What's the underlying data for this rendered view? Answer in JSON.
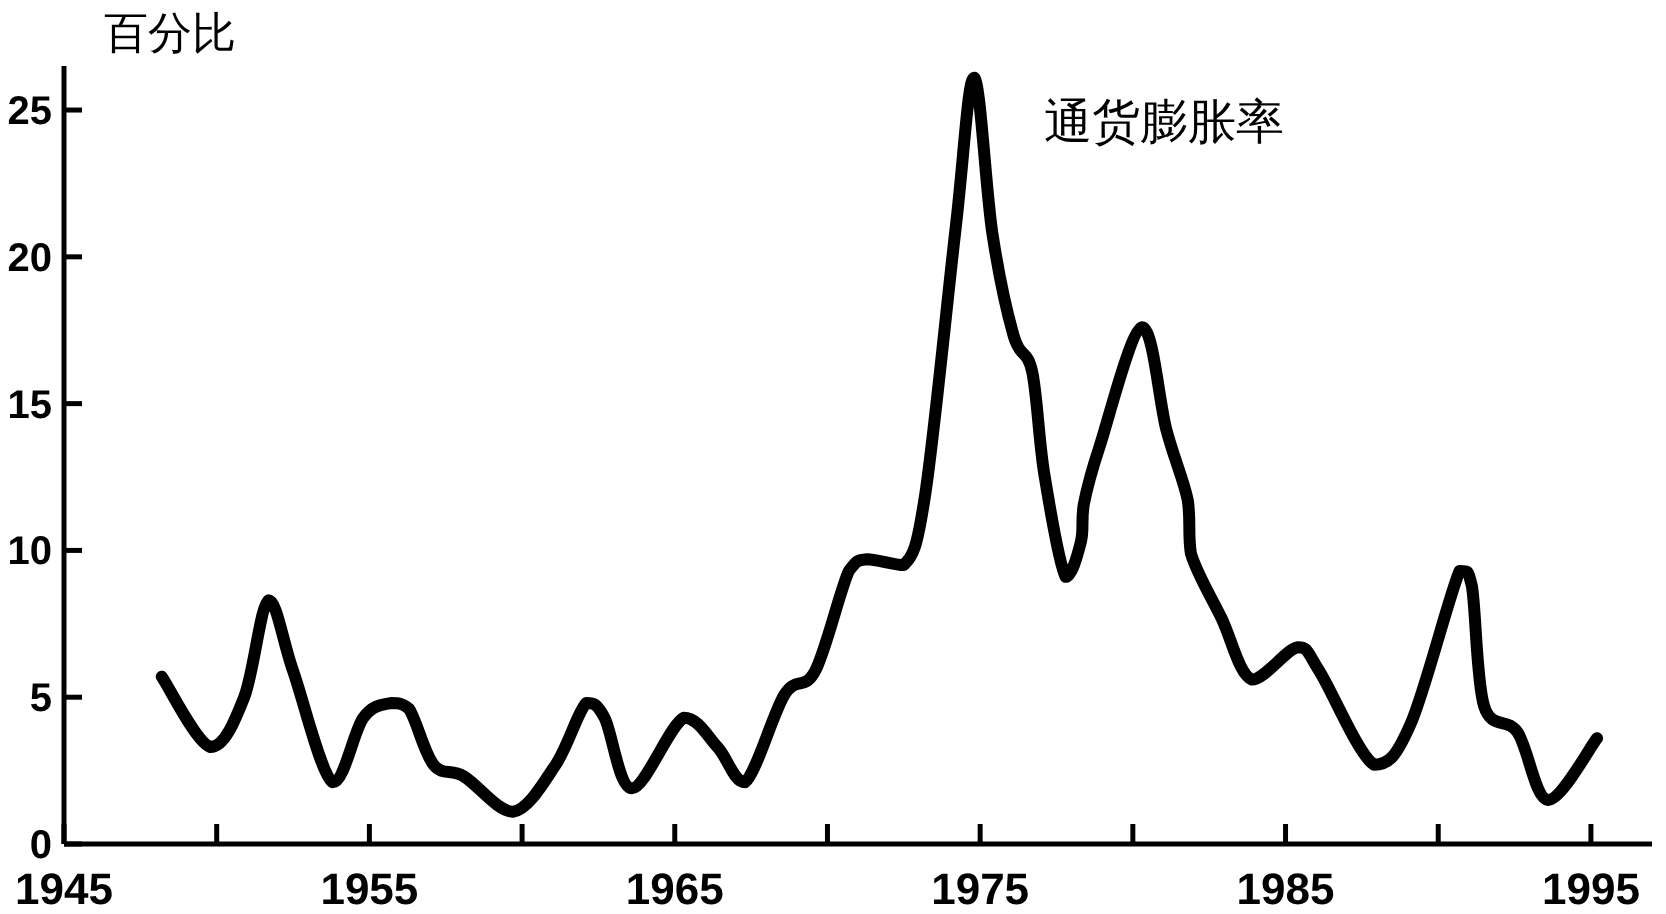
{
  "chart_data": {
    "type": "line",
    "ylabel": "百分比",
    "xlim": [
      1945,
      1997
    ],
    "ylim": [
      0,
      26.5
    ],
    "xticks": [
      1945,
      1955,
      1965,
      1975,
      1985,
      1995,
      {
        "value": 1950,
        "label": null
      },
      {
        "value": 1960,
        "label": null
      },
      {
        "value": 1970,
        "label": null
      },
      {
        "value": 1980,
        "label": null
      },
      {
        "value": 1990,
        "label": null
      }
    ],
    "yticks": [
      0,
      5,
      10,
      15,
      20,
      25
    ],
    "line_style": "solid",
    "x": [
      1948.2,
      1949.8,
      1950.9,
      1951.7,
      1952.5,
      1953.8,
      1954.8,
      1955.7,
      1956.3,
      1957.1,
      1958.1,
      1959.7,
      1961.1,
      1962.1,
      1962.7,
      1963.6,
      1965.3,
      1966.4,
      1967.3,
      1968.6,
      1969.6,
      1970.7,
      1971.3,
      1972.5,
      1973.2,
      1974.2,
      1974.8,
      1975.4,
      1976.1,
      1976.7,
      1977.1,
      1977.8,
      1978.3,
      1978.4,
      1978.9,
      1980.3,
      1981.1,
      1981.8,
      1981.9,
      1982.9,
      1983.9,
      1985.4,
      1986.1,
      1987.9,
      1989.1,
      1990.7,
      1991.1,
      1991.5,
      1992.6,
      1993.6,
      1995.2
    ],
    "series": [
      {
        "name": "通货膨胀率",
        "color": "#000000",
        "values": [
          5.7,
          3.3,
          5.0,
          8.3,
          5.9,
          2.1,
          4.3,
          4.8,
          4.6,
          2.7,
          2.3,
          1.1,
          2.7,
          4.8,
          4.3,
          1.9,
          4.3,
          3.3,
          2.1,
          5.1,
          5.9,
          9.3,
          9.7,
          9.5,
          11.9,
          21.0,
          26.1,
          20.8,
          17.3,
          16.1,
          12.6,
          9.1,
          10.3,
          11.6,
          13.5,
          17.6,
          14.1,
          11.7,
          9.9,
          7.7,
          5.6,
          6.7,
          5.9,
          2.7,
          4.1,
          9.3,
          8.8,
          4.7,
          3.8,
          1.5,
          3.6
        ]
      }
    ]
  }
}
